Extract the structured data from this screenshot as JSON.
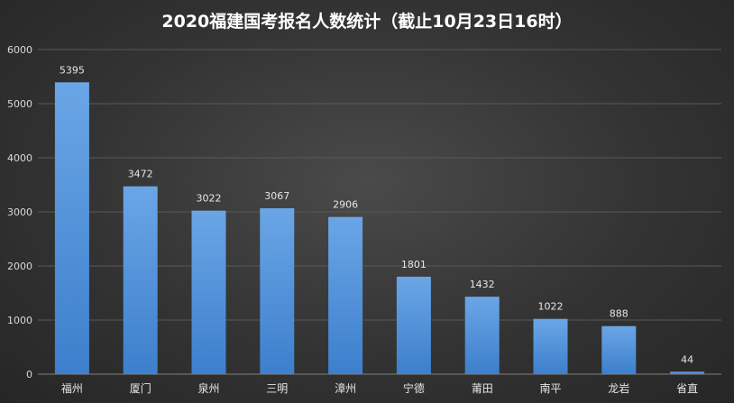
{
  "chart_data": {
    "type": "bar",
    "title": "2020福建国考报名人数统计（截止10月23日16时）",
    "categories": [
      "福州",
      "厦门",
      "泉州",
      "三明",
      "漳州",
      "宁德",
      "莆田",
      "南平",
      "龙岩",
      "省直"
    ],
    "values": [
      5395,
      3472,
      3022,
      3067,
      2906,
      1801,
      1432,
      1022,
      888,
      44
    ],
    "ylim": [
      0,
      6000
    ],
    "yticks": [
      0,
      1000,
      2000,
      3000,
      4000,
      5000,
      6000
    ],
    "xlabel": "",
    "ylabel": "",
    "grid": true,
    "bar_color_top": "#6aa6e6",
    "bar_color_bottom": "#3d7fcc"
  }
}
